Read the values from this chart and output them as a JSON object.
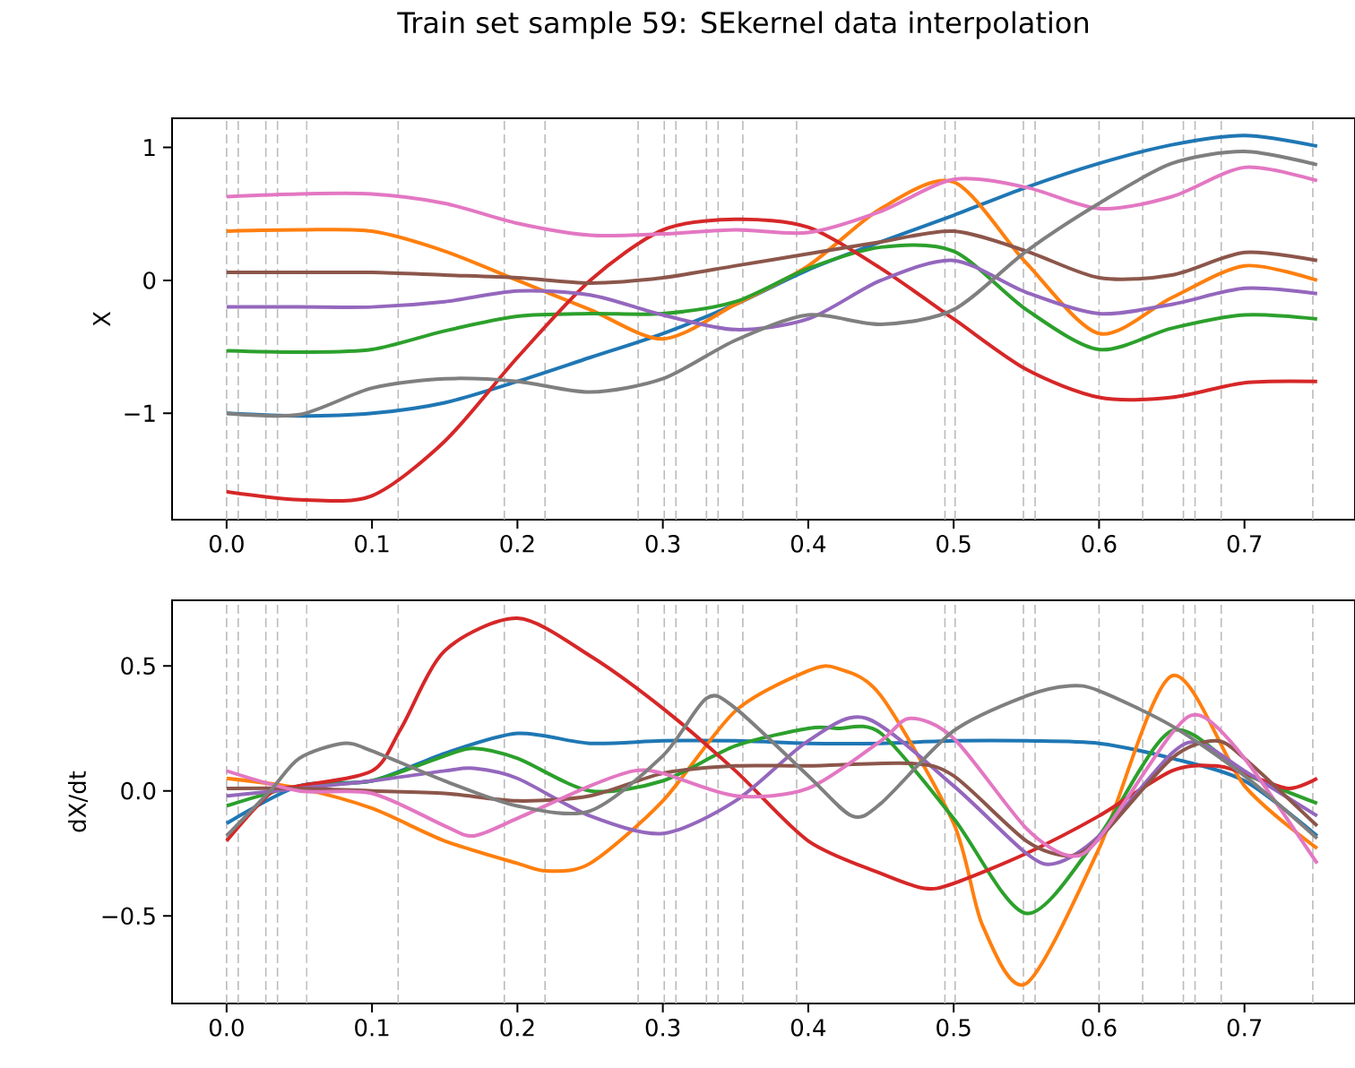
{
  "chart_data": [
    {
      "type": "line",
      "title": "Train set sample 59: SEkernel data interpolation",
      "ylabel": "X",
      "x": [
        0,
        0.05,
        0.1,
        0.15,
        0.2,
        0.25,
        0.3,
        0.35,
        0.4,
        0.45,
        0.5,
        0.55,
        0.6,
        0.65,
        0.7,
        0.75
      ],
      "xlim": [
        -0.0375,
        0.776
      ],
      "ylim": [
        -1.8,
        1.22
      ],
      "xticks": [
        {
          "value": 0,
          "label": "0.0"
        },
        {
          "value": 0.1,
          "label": "0.1"
        },
        {
          "value": 0.2,
          "label": "0.2"
        },
        {
          "value": 0.3,
          "label": "0.3"
        },
        {
          "value": 0.4,
          "label": "0.4"
        },
        {
          "value": 0.5,
          "label": "0.5"
        },
        {
          "value": 0.6,
          "label": "0.6"
        },
        {
          "value": 0.7,
          "label": "0.7"
        }
      ],
      "yticks": [
        {
          "value": -1,
          "label": "−1"
        },
        0,
        1
      ],
      "series": [
        {
          "color": "#1f77b4",
          "values": [
            -1.0,
            -1.02,
            -1.0,
            -0.92,
            -0.76,
            -0.58,
            -0.4,
            -0.18,
            0.08,
            0.29,
            0.49,
            0.7,
            0.88,
            1.02,
            1.09,
            1.01
          ]
        },
        {
          "color": "#ff7f0e",
          "values": [
            0.37,
            0.38,
            0.37,
            0.22,
            0.0,
            -0.22,
            -0.44,
            -0.18,
            0.11,
            0.54,
            0.74,
            0.13,
            -0.4,
            -0.13,
            0.11,
            0.0
          ]
        },
        {
          "color": "#2ca02c",
          "values": [
            -0.53,
            -0.54,
            -0.52,
            -0.38,
            -0.27,
            -0.25,
            -0.25,
            -0.16,
            0.09,
            0.25,
            0.22,
            -0.22,
            -0.52,
            -0.36,
            -0.26,
            -0.29
          ]
        },
        {
          "color": "#d62728",
          "values": [
            -1.59,
            -1.65,
            -1.62,
            -1.21,
            -0.58,
            0.0,
            0.38,
            0.46,
            0.4,
            0.09,
            -0.29,
            -0.67,
            -0.88,
            -0.88,
            -0.77,
            -0.76
          ]
        },
        {
          "color": "#9467bd",
          "values": [
            -0.2,
            -0.2,
            -0.2,
            -0.16,
            -0.08,
            -0.11,
            -0.26,
            -0.37,
            -0.29,
            0.0,
            0.15,
            -0.09,
            -0.25,
            -0.18,
            -0.06,
            -0.1
          ]
        },
        {
          "color": "#8c564b",
          "values": [
            0.06,
            0.06,
            0.06,
            0.04,
            0.02,
            -0.02,
            0.02,
            0.11,
            0.2,
            0.29,
            0.37,
            0.22,
            0.02,
            0.04,
            0.21,
            0.15
          ]
        },
        {
          "color": "#e377c2",
          "values": [
            0.63,
            0.65,
            0.65,
            0.58,
            0.43,
            0.34,
            0.35,
            0.38,
            0.36,
            0.52,
            0.76,
            0.7,
            0.54,
            0.63,
            0.85,
            0.75
          ]
        },
        {
          "color": "#7f7f7f",
          "values": [
            -1.0,
            -1.01,
            -0.81,
            -0.74,
            -0.76,
            -0.84,
            -0.74,
            -0.45,
            -0.26,
            -0.33,
            -0.22,
            0.22,
            0.58,
            0.88,
            0.97,
            0.87
          ]
        }
      ],
      "ref_lines": [
        {
          "axis": "x",
          "value": 0,
          "color": "#bbbbbb",
          "line_style": "dashed"
        },
        {
          "axis": "x",
          "value": 0.008,
          "color": "#bbbbbb",
          "line_style": "dashed"
        },
        {
          "axis": "x",
          "value": 0.027,
          "color": "#bbbbbb",
          "line_style": "dashed"
        },
        {
          "axis": "x",
          "value": 0.035,
          "color": "#bbbbbb",
          "line_style": "dashed"
        },
        {
          "axis": "x",
          "value": 0.055,
          "color": "#bbbbbb",
          "line_style": "dashed"
        },
        {
          "axis": "x",
          "value": 0.118,
          "color": "#bbbbbb",
          "line_style": "dashed"
        },
        {
          "axis": "x",
          "value": 0.191,
          "color": "#bbbbbb",
          "line_style": "dashed"
        },
        {
          "axis": "x",
          "value": 0.219,
          "color": "#bbbbbb",
          "line_style": "dashed"
        },
        {
          "axis": "x",
          "value": 0.283,
          "color": "#bbbbbb",
          "line_style": "dashed"
        },
        {
          "axis": "x",
          "value": 0.301,
          "color": "#bbbbbb",
          "line_style": "dashed"
        },
        {
          "axis": "x",
          "value": 0.309,
          "color": "#bbbbbb",
          "line_style": "dashed"
        },
        {
          "axis": "x",
          "value": 0.33,
          "color": "#bbbbbb",
          "line_style": "dashed"
        },
        {
          "axis": "x",
          "value": 0.338,
          "color": "#bbbbbb",
          "line_style": "dashed"
        },
        {
          "axis": "x",
          "value": 0.355,
          "color": "#bbbbbb",
          "line_style": "dashed"
        },
        {
          "axis": "x",
          "value": 0.392,
          "color": "#bbbbbb",
          "line_style": "dashed"
        },
        {
          "axis": "x",
          "value": 0.494,
          "color": "#bbbbbb",
          "line_style": "dashed"
        },
        {
          "axis": "x",
          "value": 0.501,
          "color": "#bbbbbb",
          "line_style": "dashed"
        },
        {
          "axis": "x",
          "value": 0.548,
          "color": "#bbbbbb",
          "line_style": "dashed"
        },
        {
          "axis": "x",
          "value": 0.556,
          "color": "#bbbbbb",
          "line_style": "dashed"
        },
        {
          "axis": "x",
          "value": 0.6,
          "color": "#bbbbbb",
          "line_style": "dashed"
        },
        {
          "axis": "x",
          "value": 0.63,
          "color": "#bbbbbb",
          "line_style": "dashed"
        },
        {
          "axis": "x",
          "value": 0.658,
          "color": "#bbbbbb",
          "line_style": "dashed"
        },
        {
          "axis": "x",
          "value": 0.666,
          "color": "#bbbbbb",
          "line_style": "dashed"
        },
        {
          "axis": "x",
          "value": 0.684,
          "color": "#bbbbbb",
          "line_style": "dashed"
        },
        {
          "axis": "x",
          "value": 0.747,
          "color": "#bbbbbb",
          "line_style": "dashed"
        }
      ]
    },
    {
      "type": "line",
      "ylabel": "dX/dt",
      "xlim": [
        -0.0375,
        0.776
      ],
      "ylim": [
        -0.85,
        0.762
      ],
      "xticks": [
        {
          "value": 0,
          "label": "0.0"
        },
        {
          "value": 0.1,
          "label": "0.1"
        },
        {
          "value": 0.2,
          "label": "0.2"
        },
        {
          "value": 0.3,
          "label": "0.3"
        },
        {
          "value": 0.4,
          "label": "0.4"
        },
        {
          "value": 0.5,
          "label": "0.5"
        },
        {
          "value": 0.6,
          "label": "0.6"
        },
        {
          "value": 0.7,
          "label": "0.7"
        }
      ],
      "yticks": [
        {
          "value": -0.5,
          "label": "−0.5"
        },
        {
          "value": 0,
          "label": "0.0"
        },
        0.5
      ],
      "series": [
        {
          "color": "#1f77b4",
          "x": [
            0,
            0.05,
            0.1,
            0.15,
            0.2,
            0.25,
            0.3,
            0.35,
            0.4,
            0.45,
            0.5,
            0.55,
            0.6,
            0.65,
            0.7,
            0.75
          ],
          "values": [
            -0.13,
            0.02,
            0.04,
            0.15,
            0.23,
            0.19,
            0.2,
            0.2,
            0.19,
            0.19,
            0.2,
            0.2,
            0.19,
            0.13,
            0.04,
            -0.18
          ]
        },
        {
          "color": "#ff7f0e",
          "x": [
            0,
            0.05,
            0.1,
            0.15,
            0.2,
            0.22,
            0.25,
            0.3,
            0.35,
            0.4,
            0.42,
            0.45,
            0.5,
            0.52,
            0.55,
            0.6,
            0.65,
            0.7,
            0.75
          ],
          "values": [
            0.05,
            0.01,
            -0.07,
            -0.2,
            -0.29,
            -0.32,
            -0.29,
            -0.04,
            0.32,
            0.48,
            0.49,
            0.38,
            -0.13,
            -0.54,
            -0.77,
            -0.23,
            0.46,
            0.02,
            -0.23
          ]
        },
        {
          "color": "#2ca02c",
          "x": [
            0,
            0.05,
            0.1,
            0.15,
            0.17,
            0.2,
            0.25,
            0.3,
            0.35,
            0.4,
            0.42,
            0.45,
            0.5,
            0.55,
            0.6,
            0.65,
            0.7,
            0.75
          ],
          "values": [
            -0.06,
            0.02,
            0.04,
            0.14,
            0.17,
            0.13,
            0.0,
            0.04,
            0.18,
            0.25,
            0.25,
            0.23,
            -0.11,
            -0.49,
            -0.18,
            0.24,
            0.07,
            -0.05
          ]
        },
        {
          "color": "#d62728",
          "x": [
            0,
            0.03,
            0.05,
            0.1,
            0.12,
            0.15,
            0.2,
            0.25,
            0.3,
            0.35,
            0.4,
            0.45,
            0.48,
            0.5,
            0.55,
            0.6,
            0.65,
            0.68,
            0.7,
            0.73,
            0.75
          ],
          "values": [
            -0.2,
            -0.01,
            0.02,
            0.08,
            0.25,
            0.56,
            0.69,
            0.54,
            0.33,
            0.08,
            -0.2,
            -0.33,
            -0.39,
            -0.37,
            -0.25,
            -0.1,
            0.08,
            0.1,
            0.07,
            0.01,
            0.05
          ]
        },
        {
          "color": "#9467bd",
          "x": [
            0,
            0.05,
            0.1,
            0.15,
            0.17,
            0.2,
            0.25,
            0.3,
            0.35,
            0.4,
            0.44,
            0.5,
            0.55,
            0.57,
            0.6,
            0.65,
            0.67,
            0.7,
            0.75
          ],
          "values": [
            -0.02,
            0.01,
            0.04,
            0.08,
            0.09,
            0.05,
            -0.1,
            -0.17,
            -0.04,
            0.2,
            0.29,
            0.02,
            -0.25,
            -0.29,
            -0.18,
            0.15,
            0.19,
            0.08,
            -0.1
          ]
        },
        {
          "color": "#8c564b",
          "x": [
            0,
            0.05,
            0.1,
            0.15,
            0.2,
            0.25,
            0.3,
            0.35,
            0.4,
            0.47,
            0.5,
            0.55,
            0.58,
            0.6,
            0.65,
            0.68,
            0.7,
            0.75
          ],
          "values": [
            0.01,
            0.01,
            0.0,
            -0.01,
            -0.04,
            -0.02,
            0.07,
            0.1,
            0.1,
            0.11,
            0.06,
            -0.2,
            -0.26,
            -0.19,
            0.13,
            0.2,
            0.13,
            -0.14
          ]
        },
        {
          "color": "#e377c2",
          "x": [
            0,
            0.05,
            0.1,
            0.15,
            0.17,
            0.2,
            0.25,
            0.28,
            0.3,
            0.35,
            0.4,
            0.45,
            0.47,
            0.5,
            0.55,
            0.58,
            0.6,
            0.65,
            0.67,
            0.7,
            0.75
          ],
          "values": [
            0.08,
            0.0,
            -0.01,
            -0.14,
            -0.18,
            -0.11,
            0.02,
            0.08,
            0.07,
            -0.02,
            0.01,
            0.2,
            0.29,
            0.21,
            -0.15,
            -0.26,
            -0.19,
            0.23,
            0.3,
            0.13,
            -0.29
          ]
        },
        {
          "color": "#7f7f7f",
          "x": [
            0,
            0.03,
            0.05,
            0.08,
            0.1,
            0.15,
            0.2,
            0.25,
            0.3,
            0.33,
            0.35,
            0.4,
            0.43,
            0.45,
            0.5,
            0.55,
            0.58,
            0.6,
            0.65,
            0.7,
            0.75
          ],
          "values": [
            -0.18,
            0.0,
            0.13,
            0.19,
            0.16,
            0.04,
            -0.06,
            -0.08,
            0.14,
            0.37,
            0.33,
            0.06,
            -0.1,
            -0.05,
            0.24,
            0.38,
            0.42,
            0.4,
            0.26,
            0.06,
            -0.19
          ]
        }
      ],
      "ref_lines": [
        {
          "axis": "x",
          "value": 0,
          "color": "#bbbbbb",
          "line_style": "dashed"
        },
        {
          "axis": "x",
          "value": 0.008,
          "color": "#bbbbbb",
          "line_style": "dashed"
        },
        {
          "axis": "x",
          "value": 0.027,
          "color": "#bbbbbb",
          "line_style": "dashed"
        },
        {
          "axis": "x",
          "value": 0.035,
          "color": "#bbbbbb",
          "line_style": "dashed"
        },
        {
          "axis": "x",
          "value": 0.055,
          "color": "#bbbbbb",
          "line_style": "dashed"
        },
        {
          "axis": "x",
          "value": 0.118,
          "color": "#bbbbbb",
          "line_style": "dashed"
        },
        {
          "axis": "x",
          "value": 0.191,
          "color": "#bbbbbb",
          "line_style": "dashed"
        },
        {
          "axis": "x",
          "value": 0.219,
          "color": "#bbbbbb",
          "line_style": "dashed"
        },
        {
          "axis": "x",
          "value": 0.283,
          "color": "#bbbbbb",
          "line_style": "dashed"
        },
        {
          "axis": "x",
          "value": 0.301,
          "color": "#bbbbbb",
          "line_style": "dashed"
        },
        {
          "axis": "x",
          "value": 0.309,
          "color": "#bbbbbb",
          "line_style": "dashed"
        },
        {
          "axis": "x",
          "value": 0.33,
          "color": "#bbbbbb",
          "line_style": "dashed"
        },
        {
          "axis": "x",
          "value": 0.338,
          "color": "#bbbbbb",
          "line_style": "dashed"
        },
        {
          "axis": "x",
          "value": 0.355,
          "color": "#bbbbbb",
          "line_style": "dashed"
        },
        {
          "axis": "x",
          "value": 0.392,
          "color": "#bbbbbb",
          "line_style": "dashed"
        },
        {
          "axis": "x",
          "value": 0.494,
          "color": "#bbbbbb",
          "line_style": "dashed"
        },
        {
          "axis": "x",
          "value": 0.501,
          "color": "#bbbbbb",
          "line_style": "dashed"
        },
        {
          "axis": "x",
          "value": 0.548,
          "color": "#bbbbbb",
          "line_style": "dashed"
        },
        {
          "axis": "x",
          "value": 0.556,
          "color": "#bbbbbb",
          "line_style": "dashed"
        },
        {
          "axis": "x",
          "value": 0.6,
          "color": "#bbbbbb",
          "line_style": "dashed"
        },
        {
          "axis": "x",
          "value": 0.63,
          "color": "#bbbbbb",
          "line_style": "dashed"
        },
        {
          "axis": "x",
          "value": 0.658,
          "color": "#bbbbbb",
          "line_style": "dashed"
        },
        {
          "axis": "x",
          "value": 0.666,
          "color": "#bbbbbb",
          "line_style": "dashed"
        },
        {
          "axis": "x",
          "value": 0.684,
          "color": "#bbbbbb",
          "line_style": "dashed"
        },
        {
          "axis": "x",
          "value": 0.747,
          "color": "#bbbbbb",
          "line_style": "dashed"
        }
      ]
    }
  ]
}
